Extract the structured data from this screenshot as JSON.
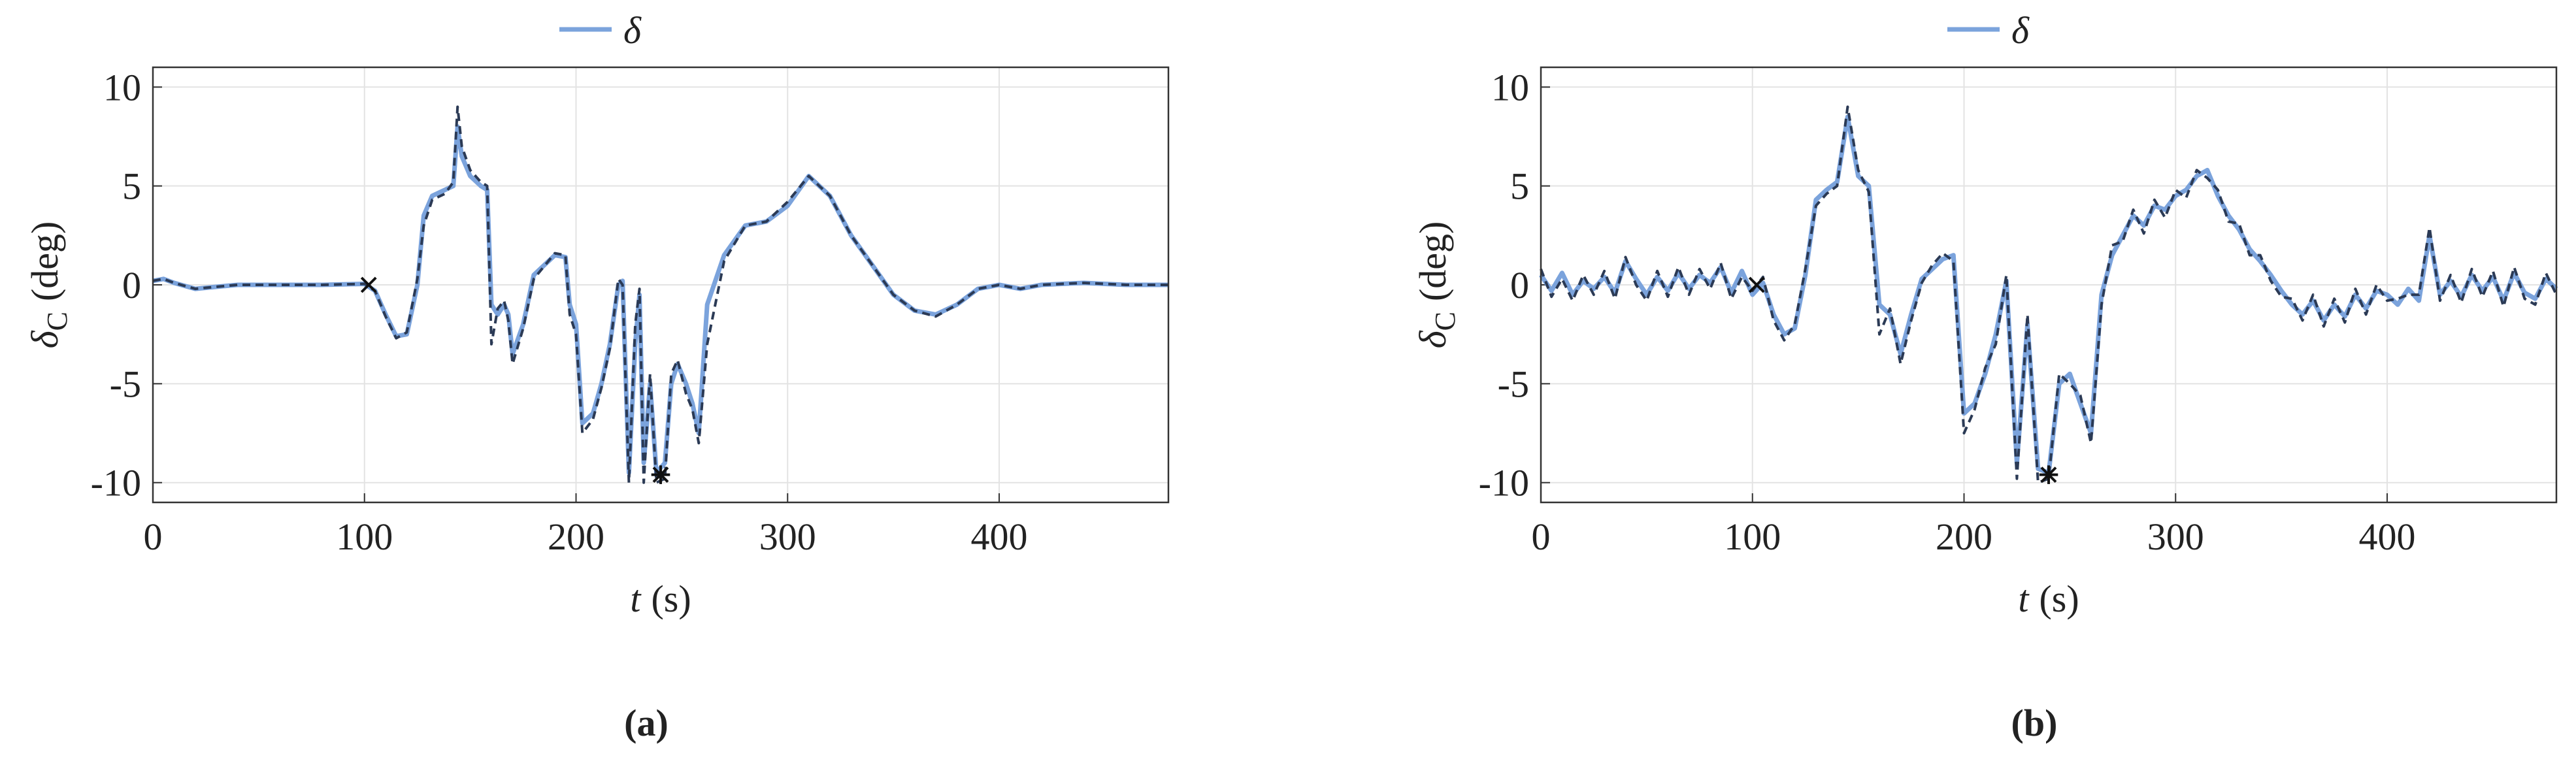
{
  "chart_data": [
    {
      "type": "line",
      "caption": "(a)",
      "xlabel": {
        "symbol": "t",
        "unit": "(s)"
      },
      "ylabel": {
        "symbol": "δ",
        "subscript": "C",
        "unit": "(deg)"
      },
      "legend": "top-outside",
      "grid": true,
      "xlim": [
        0,
        480
      ],
      "ylim": [
        -11,
        11
      ],
      "xticks": [
        0,
        100,
        200,
        300,
        400
      ],
      "yticks": [
        -10,
        -5,
        0,
        5,
        10
      ],
      "x": [
        0,
        5,
        10,
        20,
        30,
        40,
        60,
        80,
        100,
        105,
        110,
        115,
        120,
        125,
        128,
        132,
        138,
        142,
        144,
        146,
        150,
        155,
        158,
        160,
        163,
        166,
        168,
        170,
        175,
        180,
        190,
        195,
        197,
        200,
        203,
        208,
        212,
        216,
        220,
        222,
        225,
        228,
        230,
        232,
        235,
        238,
        242,
        245,
        248,
        252,
        255,
        258,
        262,
        270,
        280,
        290,
        300,
        310,
        320,
        330,
        340,
        350,
        360,
        370,
        380,
        390,
        400,
        410,
        420,
        440,
        460,
        480
      ],
      "series": [
        {
          "name": "δ",
          "color": "#7ba3dc",
          "dashed": false,
          "values": [
            0.2,
            0.3,
            0.1,
            -0.2,
            -0.1,
            0,
            0,
            0,
            0.05,
            -0.3,
            -1.5,
            -2.6,
            -2.5,
            0,
            3.5,
            4.5,
            4.8,
            5,
            8,
            6.5,
            5.5,
            5,
            4.8,
            -1,
            -1.5,
            -1,
            -1.5,
            -3.5,
            -2,
            0.5,
            1.5,
            1.4,
            -1,
            -2,
            -7,
            -6.5,
            -5,
            -3,
            0,
            0.2,
            -9.5,
            -3,
            -0.5,
            -9,
            -5,
            -9.5,
            -9,
            -5,
            -4,
            -5,
            -6,
            -7.5,
            -1,
            1.5,
            3,
            3.2,
            4,
            5.5,
            4.5,
            2.5,
            1,
            -0.5,
            -1.3,
            -1.5,
            -1,
            -0.2,
            0,
            -0.2,
            0,
            0.1,
            0,
            0
          ]
        },
        {
          "color": "#2b3a55",
          "dashed": true,
          "values": [
            0.2,
            0.3,
            0.1,
            -0.2,
            -0.1,
            0,
            0,
            0,
            0.05,
            -0.3,
            -1.6,
            -2.7,
            -2.4,
            0.3,
            3,
            4.3,
            4.6,
            5.2,
            9,
            7,
            5.8,
            5.2,
            5,
            -3,
            -1.2,
            -0.8,
            -1.8,
            -4,
            -2.2,
            0.3,
            1.6,
            1.5,
            -1.5,
            -2.5,
            -7.5,
            -6.8,
            -5.2,
            -3.2,
            0.3,
            0,
            -10,
            -2,
            -0.2,
            -10,
            -4.5,
            -10,
            -9.8,
            -4.5,
            -3.8,
            -5.5,
            -6.3,
            -8,
            -3,
            1.2,
            3,
            3.2,
            4.2,
            5.5,
            4.5,
            2.5,
            1,
            -0.5,
            -1.3,
            -1.6,
            -1,
            -0.2,
            0,
            -0.2,
            0,
            0.1,
            0,
            0
          ]
        }
      ],
      "markers": [
        {
          "x": 102,
          "y": 0,
          "symbol": "x"
        },
        {
          "x": 240,
          "y": -9.6,
          "symbol": "*"
        }
      ]
    },
    {
      "type": "line",
      "caption": "(b)",
      "xlabel": {
        "symbol": "t",
        "unit": "(s)"
      },
      "ylabel": {
        "symbol": "δ",
        "subscript": "C",
        "unit": "(deg)"
      },
      "legend": "top-outside",
      "grid": true,
      "xlim": [
        0,
        480
      ],
      "ylim": [
        -11,
        11
      ],
      "xticks": [
        0,
        100,
        200,
        300,
        400
      ],
      "yticks": [
        -10,
        -5,
        0,
        5,
        10
      ],
      "x": [
        0,
        5,
        10,
        15,
        20,
        25,
        30,
        35,
        40,
        45,
        50,
        55,
        60,
        65,
        70,
        75,
        80,
        85,
        90,
        95,
        100,
        105,
        110,
        115,
        120,
        125,
        130,
        135,
        140,
        145,
        150,
        155,
        160,
        165,
        170,
        175,
        180,
        185,
        190,
        195,
        200,
        205,
        210,
        215,
        220,
        225,
        230,
        235,
        240,
        245,
        250,
        255,
        260,
        265,
        270,
        275,
        280,
        285,
        290,
        295,
        300,
        305,
        310,
        315,
        320,
        325,
        330,
        335,
        340,
        345,
        350,
        355,
        360,
        365,
        370,
        375,
        380,
        385,
        390,
        395,
        400,
        405,
        410,
        415,
        420,
        425,
        430,
        435,
        440,
        445,
        450,
        455,
        460,
        465,
        470,
        475,
        480
      ],
      "series": [
        {
          "name": "δ",
          "color": "#7ba3dc",
          "dashed": false,
          "values": [
            0.5,
            -0.3,
            0.6,
            -0.5,
            0.2,
            -0.2,
            0.4,
            -0.4,
            1.2,
            0.3,
            -0.5,
            0.4,
            -0.3,
            0.6,
            -0.2,
            0.5,
            0.1,
            0.9,
            -0.4,
            0.7,
            -0.5,
            0.1,
            -1.5,
            -2.5,
            -2.2,
            0.5,
            4.3,
            4.8,
            5.2,
            8.5,
            5.5,
            5,
            -1,
            -1.5,
            -3.5,
            -1.5,
            0.3,
            0.8,
            1.3,
            1.5,
            -6.5,
            -6,
            -4.5,
            -2.5,
            0.2,
            -9,
            -2,
            -9.3,
            -9.5,
            -5,
            -4.5,
            -6,
            -7.5,
            -0.5,
            1.5,
            2.5,
            3.5,
            3,
            4,
            3.8,
            4.5,
            4.8,
            5.5,
            5.8,
            4.5,
            3.5,
            2.8,
            1.8,
            1.2,
            0.5,
            -0.3,
            -1,
            -1.5,
            -0.8,
            -1.8,
            -1,
            -1.6,
            -0.5,
            -1.2,
            -0.3,
            -0.5,
            -1,
            -0.2,
            -0.8,
            2.5,
            -0.5,
            0.2,
            -0.6,
            0.5,
            -0.3,
            0.4,
            -0.8,
            0.6,
            -0.4,
            -0.7,
            0.3,
            -0.2
          ]
        },
        {
          "color": "#2b3a55",
          "dashed": true,
          "values": [
            0.8,
            -0.6,
            0.3,
            -0.8,
            0.5,
            -0.5,
            0.7,
            -0.7,
            1.4,
            0,
            -0.8,
            0.7,
            -0.6,
            0.9,
            -0.5,
            0.8,
            -0.2,
            1.1,
            -0.7,
            0.4,
            -0.3,
            0.4,
            -1.8,
            -2.8,
            -2,
            0.8,
            4,
            4.6,
            5,
            9,
            5.8,
            4.7,
            -2.5,
            -1.2,
            -4,
            -1.8,
            0.1,
            1,
            1.6,
            1.2,
            -7.5,
            -6.3,
            -4.2,
            -3,
            0.5,
            -9.8,
            -1.5,
            -10,
            -9.8,
            -4.5,
            -5,
            -5.6,
            -8,
            -1,
            2,
            2.2,
            3.8,
            2.6,
            4.3,
            3.4,
            4.8,
            4.4,
            5.8,
            5.4,
            4.8,
            3.2,
            3.1,
            1.5,
            1.5,
            0.2,
            -0.6,
            -0.7,
            -1.8,
            -0.5,
            -2.1,
            -0.7,
            -1.9,
            -0.2,
            -1.5,
            0,
            -0.8,
            -0.7,
            -0.5,
            -0.5,
            2.9,
            -0.8,
            0.5,
            -0.9,
            0.8,
            -0.6,
            0.7,
            -1.1,
            0.9,
            -0.7,
            -1,
            0.6,
            -0.5
          ]
        }
      ],
      "markers": [
        {
          "x": 102,
          "y": 0,
          "symbol": "x"
        },
        {
          "x": 240,
          "y": -9.6,
          "symbol": "*"
        }
      ]
    }
  ]
}
